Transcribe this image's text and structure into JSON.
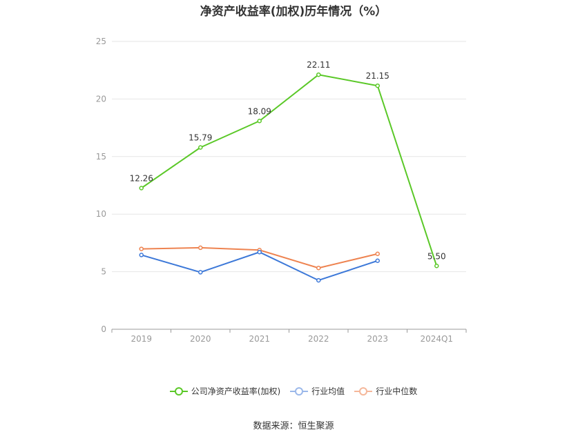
{
  "title": "净资产收益率(加权)历年情况（%）",
  "source": "数据来源：恒生聚源",
  "chart_data": {
    "type": "line",
    "categories": [
      "2019",
      "2020",
      "2021",
      "2022",
      "2023",
      "2024Q1"
    ],
    "ylim": [
      0,
      25
    ],
    "yticks": [
      0,
      5,
      10,
      15,
      20,
      25
    ],
    "grid": true,
    "legend_position": "bottom",
    "series": [
      {
        "name": "公司净资产收益率(加权)",
        "color": "#5ac827",
        "values": [
          12.26,
          15.79,
          18.09,
          22.11,
          21.15,
          5.5
        ],
        "labels": [
          "12.26",
          "15.79",
          "18.09",
          "22.11",
          "21.15",
          "5.50"
        ]
      },
      {
        "name": "行业均值",
        "color": "#3c78d8",
        "values": [
          6.45,
          4.95,
          6.7,
          4.25,
          5.95,
          null
        ]
      },
      {
        "name": "行业中位数",
        "color": "#ee8350",
        "values": [
          6.98,
          7.08,
          6.88,
          5.32,
          6.55,
          null
        ]
      }
    ]
  }
}
